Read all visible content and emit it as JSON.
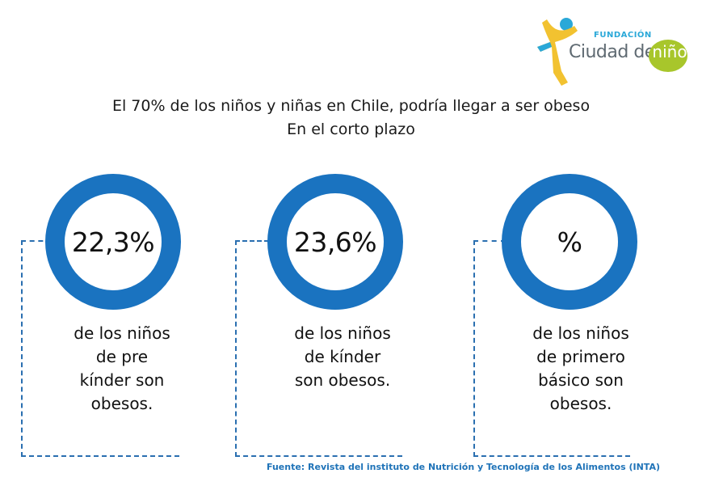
{
  "logo": {
    "fundacion": "FUNDACIÓN",
    "name": "Ciudad del",
    "name_highlight": "niño"
  },
  "headline": {
    "line1": "El 70% de los niños y niñas en Chile, podría llegar a ser obeso",
    "line2": "En el corto plazo"
  },
  "stats": [
    {
      "value": "22,3%",
      "lines": [
        "de los niños",
        "de pre",
        "kínder son",
        "obesos."
      ]
    },
    {
      "value": "23,6%",
      "lines": [
        "de los niños",
        "de kínder",
        "son obesos."
      ]
    },
    {
      "value": "%",
      "lines": [
        "de los niños",
        "de primero",
        "básico son",
        "obesos."
      ]
    }
  ],
  "source": "Fuente: Revista del instituto de Nutrición y Tecnología  de los Alimentos (INTA)",
  "colors": {
    "ring": "#1a73c0",
    "dash": "#2a6fb0",
    "source_text": "#1f73b8",
    "logo_green": "#a8c62b",
    "logo_blue": "#2aa8d8",
    "logo_yellow": "#f2c230"
  },
  "icons": {
    "logo_figure": "child-figure-icon"
  }
}
